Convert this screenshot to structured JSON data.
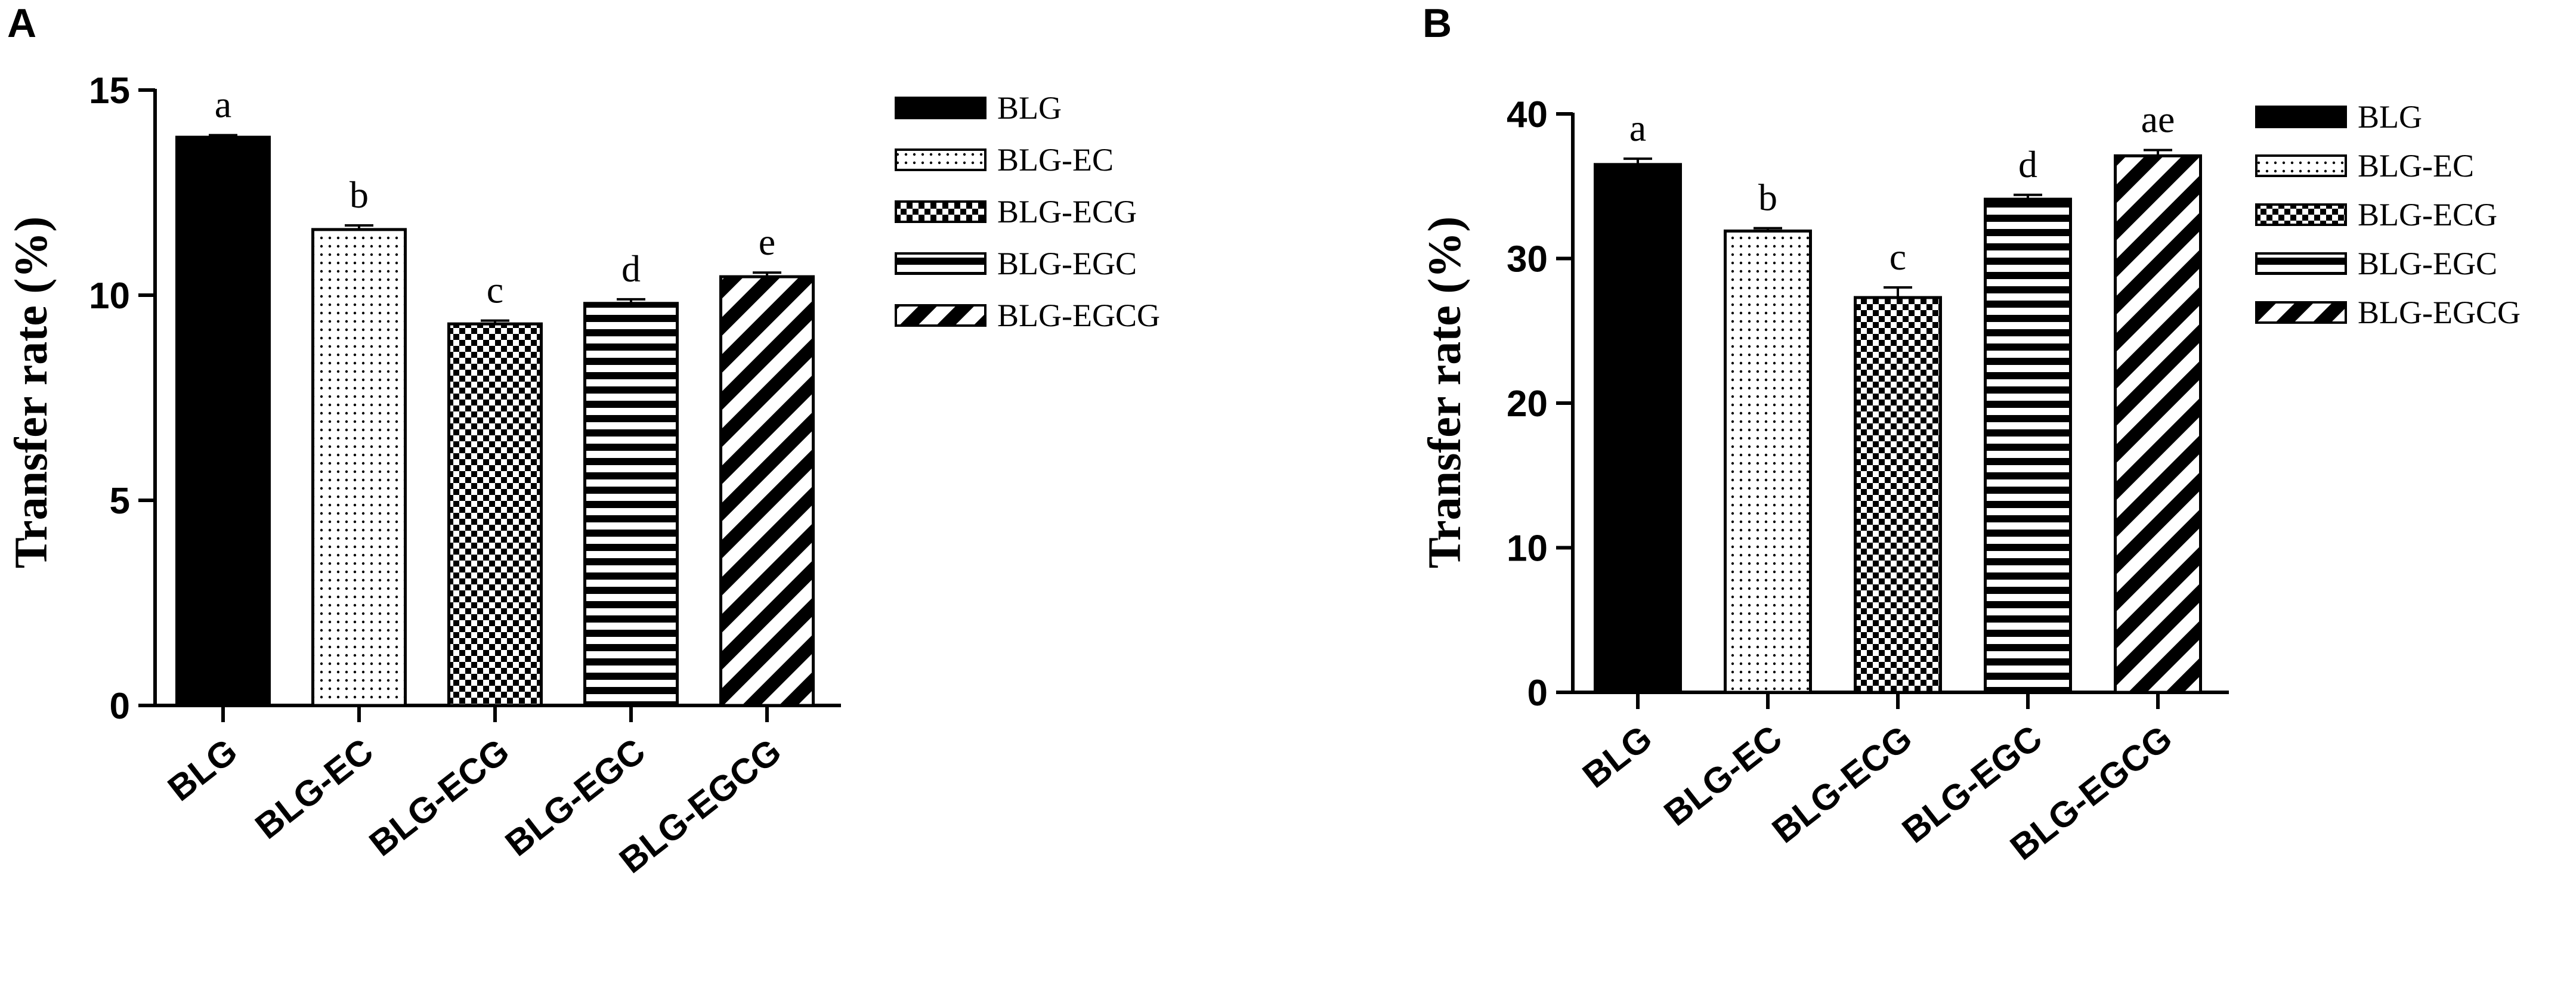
{
  "colors": {
    "ink": "#000000",
    "background": "#ffffff"
  },
  "chart_data": [
    {
      "panel_label": "A",
      "type": "bar",
      "ylabel": "Transfer rate (%)",
      "xlabel": "",
      "ylim": [
        0,
        15
      ],
      "yticks": [
        0,
        5,
        10,
        15
      ],
      "categories": [
        "BLG",
        "BLG-EC",
        "BLG-ECG",
        "BLG-EGC",
        "BLG-EGCG"
      ],
      "values": [
        13.85,
        11.6,
        9.3,
        9.8,
        10.45
      ],
      "errors": [
        0.05,
        0.1,
        0.08,
        0.1,
        0.1
      ],
      "significance_letters": [
        "a",
        "b",
        "c",
        "d",
        "e"
      ],
      "patterns": [
        "solid",
        "dots",
        "checker",
        "horizontal-stripes",
        "diagonal-stripes"
      ],
      "legend": [
        "BLG",
        "BLG-EC",
        "BLG-ECG",
        "BLG-EGC",
        "BLG-EGCG"
      ],
      "legend_position": "top-right",
      "grid": false
    },
    {
      "panel_label": "B",
      "type": "bar",
      "ylabel": "Transfer rate (%)",
      "xlabel": "",
      "ylim": [
        0,
        40
      ],
      "yticks": [
        0,
        10,
        20,
        30,
        40
      ],
      "categories": [
        "BLG",
        "BLG-EC",
        "BLG-ECG",
        "BLG-EGC",
        "BLG-EGCG"
      ],
      "values": [
        36.5,
        31.9,
        27.3,
        34.1,
        37.1
      ],
      "errors": [
        0.4,
        0.2,
        0.7,
        0.3,
        0.4
      ],
      "significance_letters": [
        "a",
        "b",
        "c",
        "d",
        "ae"
      ],
      "patterns": [
        "solid",
        "dots",
        "checker",
        "horizontal-stripes",
        "diagonal-stripes"
      ],
      "legend": [
        "BLG",
        "BLG-EC",
        "BLG-ECG",
        "BLG-EGC",
        "BLG-EGCG"
      ],
      "legend_position": "top-right",
      "grid": false
    }
  ]
}
